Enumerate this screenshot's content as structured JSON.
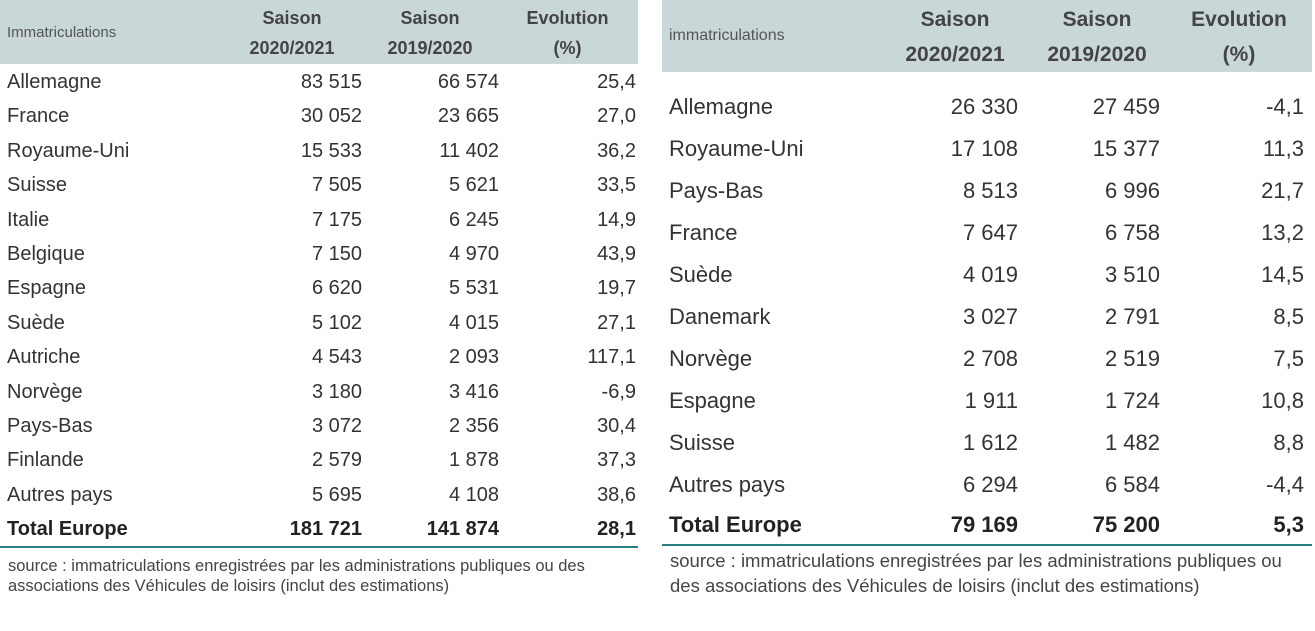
{
  "left_table": {
    "label": "Immatriculations",
    "columns": [
      {
        "line1": "Saison",
        "line2": "2020/2021"
      },
      {
        "line1": "Saison",
        "line2": "2019/2020"
      },
      {
        "line1": "Evolution",
        "line2": "(%)"
      }
    ],
    "rows": [
      {
        "country": "Allemagne",
        "v1": "83 515",
        "v2": "66 574",
        "v3": "25,4"
      },
      {
        "country": "France",
        "v1": "30 052",
        "v2": "23 665",
        "v3": "27,0"
      },
      {
        "country": "Royaume-Uni",
        "v1": "15 533",
        "v2": "11 402",
        "v3": "36,2"
      },
      {
        "country": "Suisse",
        "v1": "7 505",
        "v2": "5 621",
        "v3": "33,5"
      },
      {
        "country": "Italie",
        "v1": "7 175",
        "v2": "6 245",
        "v3": "14,9"
      },
      {
        "country": "Belgique",
        "v1": "7 150",
        "v2": "4 970",
        "v3": "43,9"
      },
      {
        "country": "Espagne",
        "v1": "6 620",
        "v2": "5 531",
        "v3": "19,7"
      },
      {
        "country": "Suède",
        "v1": "5 102",
        "v2": "4 015",
        "v3": "27,1"
      },
      {
        "country": "Autriche",
        "v1": "4 543",
        "v2": "2 093",
        "v3": "117,1"
      },
      {
        "country": "Norvège",
        "v1": "3 180",
        "v2": "3 416",
        "v3": "-6,9"
      },
      {
        "country": "Pays-Bas",
        "v1": "3 072",
        "v2": "2 356",
        "v3": "30,4"
      },
      {
        "country": "Finlande",
        "v1": "2 579",
        "v2": "1 878",
        "v3": "37,3"
      },
      {
        "country": "Autres pays",
        "v1": "5 695",
        "v2": "4 108",
        "v3": "38,6"
      }
    ],
    "total": {
      "country": "Total Europe",
      "v1": "181 721",
      "v2": "141 874",
      "v3": "28,1"
    },
    "source": "source : immatriculations enregistrées par les administrations publiques ou des associations des Véhicules de loisirs (inclut des estimations)"
  },
  "right_table": {
    "label": "immatriculations",
    "columns": [
      {
        "line1": "Saison",
        "line2": "2020/2021"
      },
      {
        "line1": "Saison",
        "line2": "2019/2020"
      },
      {
        "line1": "Evolution",
        "line2": "(%)"
      }
    ],
    "rows": [
      {
        "country": "Allemagne",
        "v1": "26 330",
        "v2": "27 459",
        "v3": "-4,1"
      },
      {
        "country": "Royaume-Uni",
        "v1": "17 108",
        "v2": "15 377",
        "v3": "11,3"
      },
      {
        "country": "Pays-Bas",
        "v1": "8 513",
        "v2": "6 996",
        "v3": "21,7"
      },
      {
        "country": "France",
        "v1": "7 647",
        "v2": "6 758",
        "v3": "13,2"
      },
      {
        "country": "Suède",
        "v1": "4 019",
        "v2": "3 510",
        "v3": "14,5"
      },
      {
        "country": "Danemark",
        "v1": "3 027",
        "v2": "2 791",
        "v3": "8,5"
      },
      {
        "country": "Norvège",
        "v1": "2 708",
        "v2": "2 519",
        "v3": "7,5"
      },
      {
        "country": "Espagne",
        "v1": "1 911",
        "v2": "1 724",
        "v3": "10,8"
      },
      {
        "country": "Suisse",
        "v1": "1 612",
        "v2": "1 482",
        "v3": "8,8"
      },
      {
        "country": "Autres pays",
        "v1": "6 294",
        "v2": "6 584",
        "v3": "-4,4"
      }
    ],
    "total": {
      "country": "Total Europe",
      "v1": "79 169",
      "v2": "75 200",
      "v3": "5,3"
    },
    "source": "source : immatriculations enregistrées par les administrations publiques ou des associations des Véhicules de loisirs (inclut des estimations)"
  }
}
